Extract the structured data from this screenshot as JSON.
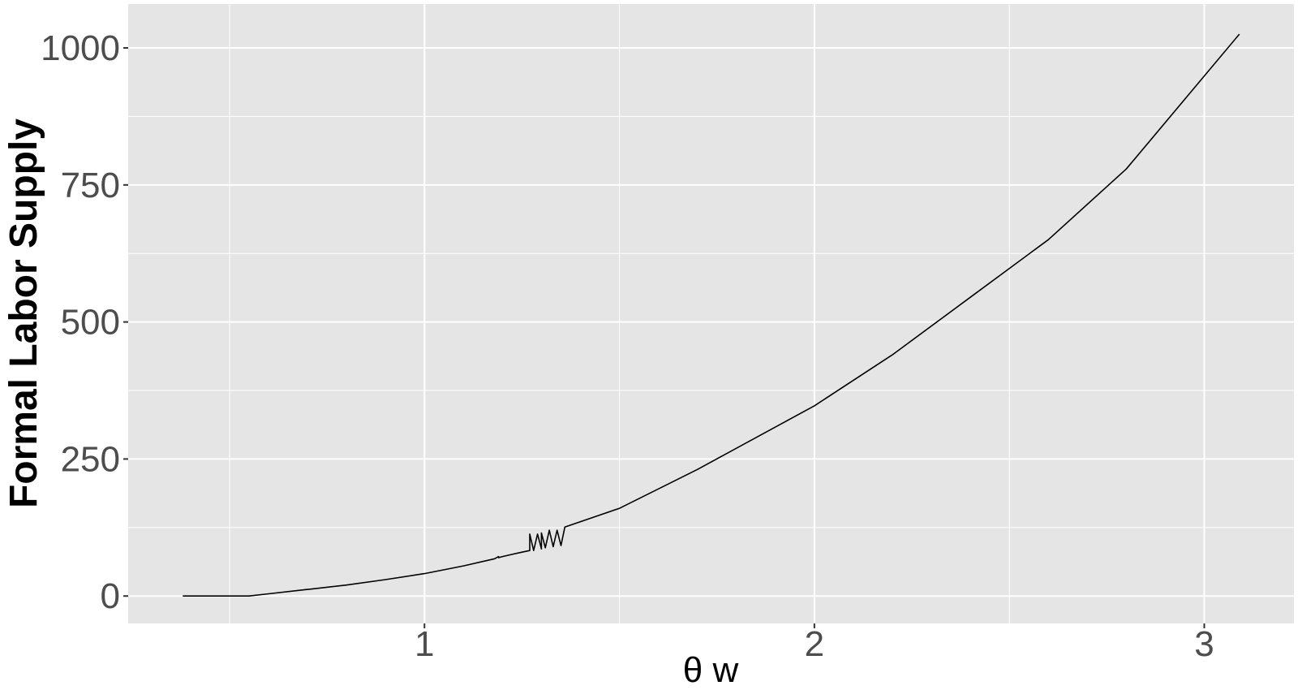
{
  "chart_data": {
    "type": "line",
    "title": "",
    "xlabel": "θ w",
    "ylabel": "Formal Labor Supply",
    "xlim": [
      0.24,
      3.23
    ],
    "ylim": [
      -50,
      1080
    ],
    "x_ticks": [
      1,
      2,
      3
    ],
    "x_tick_labels": [
      "1",
      "2",
      "3"
    ],
    "x_minor_ticks": [
      0.5,
      1.5,
      2.5
    ],
    "y_ticks": [
      0,
      250,
      500,
      750,
      1000
    ],
    "y_tick_labels": [
      "0",
      "250",
      "500",
      "750",
      "1000"
    ],
    "y_minor_ticks": [
      125,
      375,
      625,
      875
    ],
    "grid": true,
    "legend": "none",
    "colors": {
      "panel": "#e5e5e5",
      "grid": "#ffffff",
      "line": "#000000"
    },
    "series": [
      {
        "points": [
          [
            0.38,
            0
          ],
          [
            0.55,
            0
          ],
          [
            0.6,
            4
          ],
          [
            0.7,
            12
          ],
          [
            0.8,
            20
          ],
          [
            0.9,
            30
          ],
          [
            1.0,
            41
          ],
          [
            1.1,
            55
          ],
          [
            1.18,
            68
          ],
          [
            1.19,
            72
          ],
          [
            1.19,
            70
          ],
          [
            1.2,
            72
          ],
          [
            1.25,
            80
          ],
          [
            1.27,
            83
          ],
          [
            1.27,
            113
          ],
          [
            1.28,
            83
          ],
          [
            1.29,
            113
          ],
          [
            1.3,
            86
          ],
          [
            1.3,
            115
          ],
          [
            1.31,
            88
          ],
          [
            1.32,
            120
          ],
          [
            1.33,
            90
          ],
          [
            1.34,
            120
          ],
          [
            1.35,
            92
          ],
          [
            1.36,
            126
          ],
          [
            1.5,
            160
          ],
          [
            1.7,
            231
          ],
          [
            2.0,
            347
          ],
          [
            2.2,
            440
          ],
          [
            2.4,
            545
          ],
          [
            2.6,
            650
          ],
          [
            2.8,
            779
          ],
          [
            3.09,
            1025
          ]
        ]
      }
    ]
  }
}
